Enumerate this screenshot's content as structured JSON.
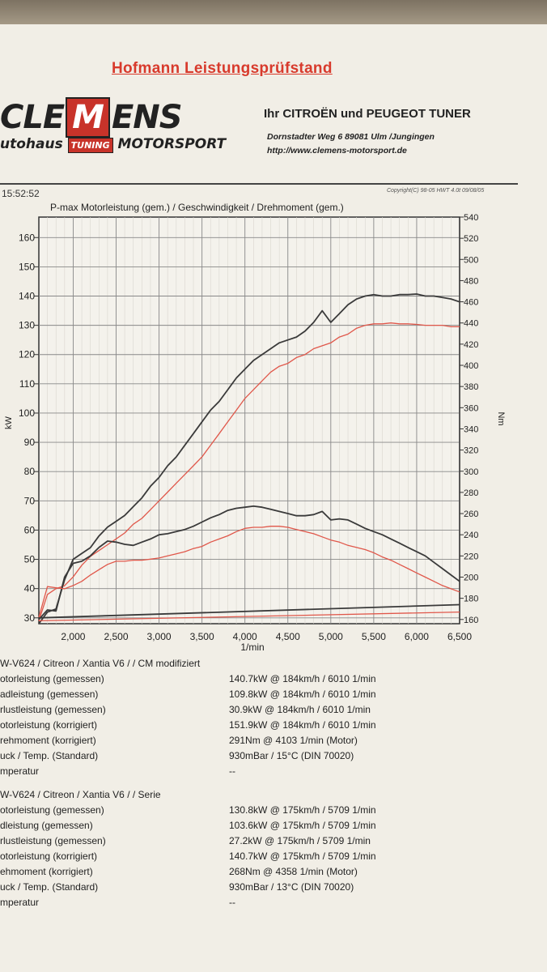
{
  "header": {
    "title": "Hofmann Leistungsprüfstand",
    "logo_left": "CLE",
    "logo_m": "M",
    "logo_right": "ENS",
    "logo_sub_left": "utohaus",
    "logo_sub_tuning": "TUNING",
    "logo_sub_right": "MOTORSPORT",
    "tuner": "Ihr CITROËN und PEUGEOT TUNER",
    "address": "Dornstadter Weg 6 89081 Ulm /Jungingen",
    "url": "http://www.clemens-motorsport.de",
    "time": "15:52:52",
    "copyright": "Copyright(C) 98-05 HWT 4.0t 09/08/05"
  },
  "chart_data": {
    "type": "line",
    "title": "P-max Motorleistung (gem.) / Geschwindigkeit / Drehmoment (gem.)",
    "xlabel": "1/min",
    "ylabel": "kW",
    "y2label": "Nm",
    "xlim": [
      1600,
      6500
    ],
    "ylim": [
      28,
      167
    ],
    "y2lim": [
      156,
      540
    ],
    "x_ticks": [
      "2,000",
      "2,500",
      "3,000",
      "3,500",
      "4,000",
      "4,500",
      "5,000",
      "5,500",
      "6,000",
      "6,500"
    ],
    "y_ticks": [
      "30",
      "40",
      "50",
      "60",
      "70",
      "80",
      "90",
      "100",
      "110",
      "120",
      "130",
      "140",
      "150",
      "160"
    ],
    "y2_ticks": [
      "160",
      "180",
      "200",
      "220",
      "240",
      "260",
      "280",
      "300",
      "320",
      "340",
      "360",
      "380",
      "400",
      "420",
      "440",
      "460",
      "480",
      "500",
      "520",
      "540"
    ],
    "grid": true,
    "colors": {
      "modified": "#3a3a3a",
      "stock": "#e0574a"
    },
    "series": [
      {
        "kind": "power",
        "color": "modified",
        "points": [
          [
            1600,
            28
          ],
          [
            1700,
            32
          ],
          [
            1800,
            33
          ],
          [
            1900,
            43
          ],
          [
            2000,
            50
          ],
          [
            2100,
            52
          ],
          [
            2200,
            54
          ],
          [
            2300,
            58
          ],
          [
            2400,
            61
          ],
          [
            2500,
            63
          ],
          [
            2600,
            65
          ],
          [
            2700,
            68
          ],
          [
            2800,
            71
          ],
          [
            2900,
            75
          ],
          [
            3000,
            78
          ],
          [
            3100,
            82
          ],
          [
            3200,
            85
          ],
          [
            3300,
            89
          ],
          [
            3400,
            93
          ],
          [
            3500,
            97
          ],
          [
            3600,
            101
          ],
          [
            3700,
            104
          ],
          [
            3800,
            108
          ],
          [
            3900,
            112
          ],
          [
            4000,
            115
          ],
          [
            4100,
            118
          ],
          [
            4200,
            120
          ],
          [
            4300,
            122
          ],
          [
            4400,
            124
          ],
          [
            4500,
            125
          ],
          [
            4600,
            126
          ],
          [
            4700,
            128
          ],
          [
            4800,
            131
          ],
          [
            4900,
            135
          ],
          [
            5000,
            131
          ],
          [
            5100,
            134
          ],
          [
            5200,
            137
          ],
          [
            5300,
            139
          ],
          [
            5400,
            140
          ],
          [
            5500,
            140.5
          ],
          [
            5600,
            140
          ],
          [
            5700,
            140
          ],
          [
            5800,
            140.5
          ],
          [
            5900,
            140.5
          ],
          [
            6000,
            140.7
          ],
          [
            6100,
            140
          ],
          [
            6200,
            140
          ],
          [
            6300,
            139.5
          ],
          [
            6400,
            139
          ],
          [
            6500,
            138
          ]
        ]
      },
      {
        "kind": "power",
        "color": "stock",
        "points": [
          [
            1600,
            29
          ],
          [
            1700,
            38
          ],
          [
            1800,
            40
          ],
          [
            1900,
            41
          ],
          [
            2000,
            44
          ],
          [
            2100,
            48
          ],
          [
            2200,
            51
          ],
          [
            2300,
            53
          ],
          [
            2400,
            55
          ],
          [
            2500,
            57
          ],
          [
            2600,
            59
          ],
          [
            2700,
            62
          ],
          [
            2800,
            64
          ],
          [
            2900,
            67
          ],
          [
            3000,
            70
          ],
          [
            3100,
            73
          ],
          [
            3200,
            76
          ],
          [
            3300,
            79
          ],
          [
            3400,
            82
          ],
          [
            3500,
            85
          ],
          [
            3600,
            89
          ],
          [
            3700,
            93
          ],
          [
            3800,
            97
          ],
          [
            3900,
            101
          ],
          [
            4000,
            105
          ],
          [
            4100,
            108
          ],
          [
            4200,
            111
          ],
          [
            4300,
            114
          ],
          [
            4400,
            116
          ],
          [
            4500,
            117
          ],
          [
            4600,
            119
          ],
          [
            4700,
            120
          ],
          [
            4800,
            122
          ],
          [
            4900,
            123
          ],
          [
            5000,
            124
          ],
          [
            5100,
            126
          ],
          [
            5200,
            127
          ],
          [
            5300,
            129
          ],
          [
            5400,
            130
          ],
          [
            5500,
            130.5
          ],
          [
            5600,
            130.5
          ],
          [
            5700,
            130.8
          ],
          [
            5800,
            130.5
          ],
          [
            5900,
            130.5
          ],
          [
            6000,
            130.3
          ],
          [
            6100,
            130
          ],
          [
            6200,
            130
          ],
          [
            6300,
            130
          ],
          [
            6400,
            129.5
          ],
          [
            6500,
            129.5
          ]
        ]
      },
      {
        "kind": "torque",
        "color": "modified",
        "points": [
          [
            1600,
            160
          ],
          [
            1700,
            169
          ],
          [
            1800,
            168
          ],
          [
            1900,
            200
          ],
          [
            2000,
            213
          ],
          [
            2100,
            215
          ],
          [
            2200,
            220
          ],
          [
            2300,
            228
          ],
          [
            2400,
            234
          ],
          [
            2500,
            233
          ],
          [
            2600,
            231
          ],
          [
            2700,
            230
          ],
          [
            2800,
            233
          ],
          [
            2900,
            236
          ],
          [
            3000,
            240
          ],
          [
            3100,
            241
          ],
          [
            3200,
            243
          ],
          [
            3300,
            245
          ],
          [
            3400,
            248
          ],
          [
            3500,
            252
          ],
          [
            3600,
            256
          ],
          [
            3700,
            259
          ],
          [
            3800,
            263
          ],
          [
            3900,
            265
          ],
          [
            4000,
            266
          ],
          [
            4100,
            267
          ],
          [
            4200,
            266
          ],
          [
            4300,
            264
          ],
          [
            4400,
            262
          ],
          [
            4500,
            260
          ],
          [
            4600,
            258
          ],
          [
            4700,
            258
          ],
          [
            4800,
            259
          ],
          [
            4900,
            262
          ],
          [
            5000,
            254
          ],
          [
            5100,
            255
          ],
          [
            5200,
            254
          ],
          [
            5300,
            250
          ],
          [
            5400,
            246
          ],
          [
            5500,
            243
          ],
          [
            5600,
            240
          ],
          [
            5700,
            236
          ],
          [
            5800,
            232
          ],
          [
            5900,
            228
          ],
          [
            6000,
            224
          ],
          [
            6100,
            220
          ],
          [
            6200,
            214
          ],
          [
            6300,
            208
          ],
          [
            6400,
            202
          ],
          [
            6500,
            196
          ]
        ]
      },
      {
        "kind": "torque",
        "color": "stock",
        "points": [
          [
            1600,
            162
          ],
          [
            1700,
            191
          ],
          [
            1800,
            190
          ],
          [
            1900,
            189
          ],
          [
            2000,
            192
          ],
          [
            2100,
            196
          ],
          [
            2200,
            202
          ],
          [
            2300,
            207
          ],
          [
            2400,
            212
          ],
          [
            2500,
            215
          ],
          [
            2600,
            215
          ],
          [
            2700,
            216
          ],
          [
            2800,
            216
          ],
          [
            2900,
            217
          ],
          [
            3000,
            218
          ],
          [
            3100,
            220
          ],
          [
            3200,
            222
          ],
          [
            3300,
            224
          ],
          [
            3400,
            227
          ],
          [
            3500,
            229
          ],
          [
            3600,
            233
          ],
          [
            3700,
            236
          ],
          [
            3800,
            239
          ],
          [
            3900,
            243
          ],
          [
            4000,
            246
          ],
          [
            4100,
            247
          ],
          [
            4200,
            247
          ],
          [
            4300,
            248
          ],
          [
            4400,
            248
          ],
          [
            4500,
            247
          ],
          [
            4600,
            245
          ],
          [
            4700,
            243
          ],
          [
            4800,
            241
          ],
          [
            4900,
            238
          ],
          [
            5000,
            235
          ],
          [
            5100,
            233
          ],
          [
            5200,
            230
          ],
          [
            5300,
            228
          ],
          [
            5400,
            226
          ],
          [
            5500,
            223
          ],
          [
            5600,
            219
          ],
          [
            5700,
            216
          ],
          [
            5800,
            212
          ],
          [
            5900,
            208
          ],
          [
            6000,
            204
          ],
          [
            6100,
            200
          ],
          [
            6200,
            196
          ],
          [
            6300,
            192
          ],
          [
            6400,
            189
          ],
          [
            6500,
            186
          ]
        ]
      },
      {
        "kind": "speed",
        "color": "modified",
        "points": [
          [
            1600,
            30
          ],
          [
            6500,
            34.5
          ]
        ]
      },
      {
        "kind": "speed",
        "color": "stock",
        "points": [
          [
            1600,
            29
          ],
          [
            6500,
            32
          ]
        ]
      }
    ]
  },
  "runs": [
    {
      "header": "W-V624 / Citreon / Xantia V6 /  / CM modifiziert",
      "rows": [
        {
          "label": "otorleistung (gemessen)",
          "value": "140.7kW @ 184km/h / 6010 1/min"
        },
        {
          "label": "adleistung (gemessen)",
          "value": "109.8kW @ 184km/h / 6010 1/min"
        },
        {
          "label": "rlustleistung (gemessen)",
          "value": "30.9kW @ 184km/h / 6010 1/min"
        },
        {
          "label": "otorleistung (korrigiert)",
          "value": "151.9kW @ 184km/h / 6010 1/min"
        },
        {
          "label": "rehmoment (korrigiert)",
          "value": "291Nm @ 4103 1/min (Motor)"
        },
        {
          "label": "uck / Temp. (Standard)",
          "value": "930mBar / 15°C  (DIN 70020)"
        },
        {
          "label": "mperatur",
          "value": "--"
        }
      ]
    },
    {
      "header": "W-V624 / Citreon / Xantia V6 /  / Serie",
      "rows": [
        {
          "label": "otorleistung (gemessen)",
          "value": "130.8kW @ 175km/h / 5709 1/min"
        },
        {
          "label": "dleistung (gemessen)",
          "value": "103.6kW @ 175km/h / 5709 1/min"
        },
        {
          "label": "rlustleistung (gemessen)",
          "value": "27.2kW @ 175km/h / 5709 1/min"
        },
        {
          "label": "otorleistung (korrigiert)",
          "value": "140.7kW @ 175km/h / 5709 1/min"
        },
        {
          "label": "ehmoment (korrigiert)",
          "value": "268Nm @ 4358 1/min (Motor)"
        },
        {
          "label": "uck / Temp. (Standard)",
          "value": "930mBar / 13°C  (DIN 70020)"
        },
        {
          "label": "mperatur",
          "value": "--"
        }
      ]
    }
  ]
}
